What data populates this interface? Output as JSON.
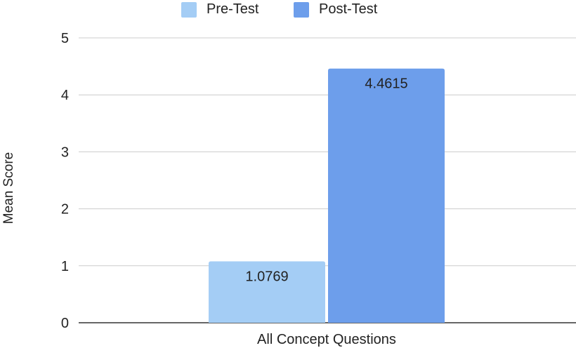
{
  "chart_data": {
    "type": "bar",
    "title": "",
    "xlabel": "All Concept Questions",
    "ylabel": "Mean Score",
    "categories": [
      "All Concept Questions"
    ],
    "series": [
      {
        "name": "Pre-Test",
        "values": [
          1.0769
        ],
        "color": "#a4cdf5"
      },
      {
        "name": "Post-Test",
        "values": [
          4.4615
        ],
        "color": "#6d9eeb"
      }
    ],
    "data_labels": [
      "1.0769",
      "4.4615"
    ],
    "ylim": [
      0,
      5
    ],
    "yticks": [
      "0",
      "1",
      "2",
      "3",
      "4",
      "5"
    ],
    "grid": true,
    "legend_position": "top"
  }
}
